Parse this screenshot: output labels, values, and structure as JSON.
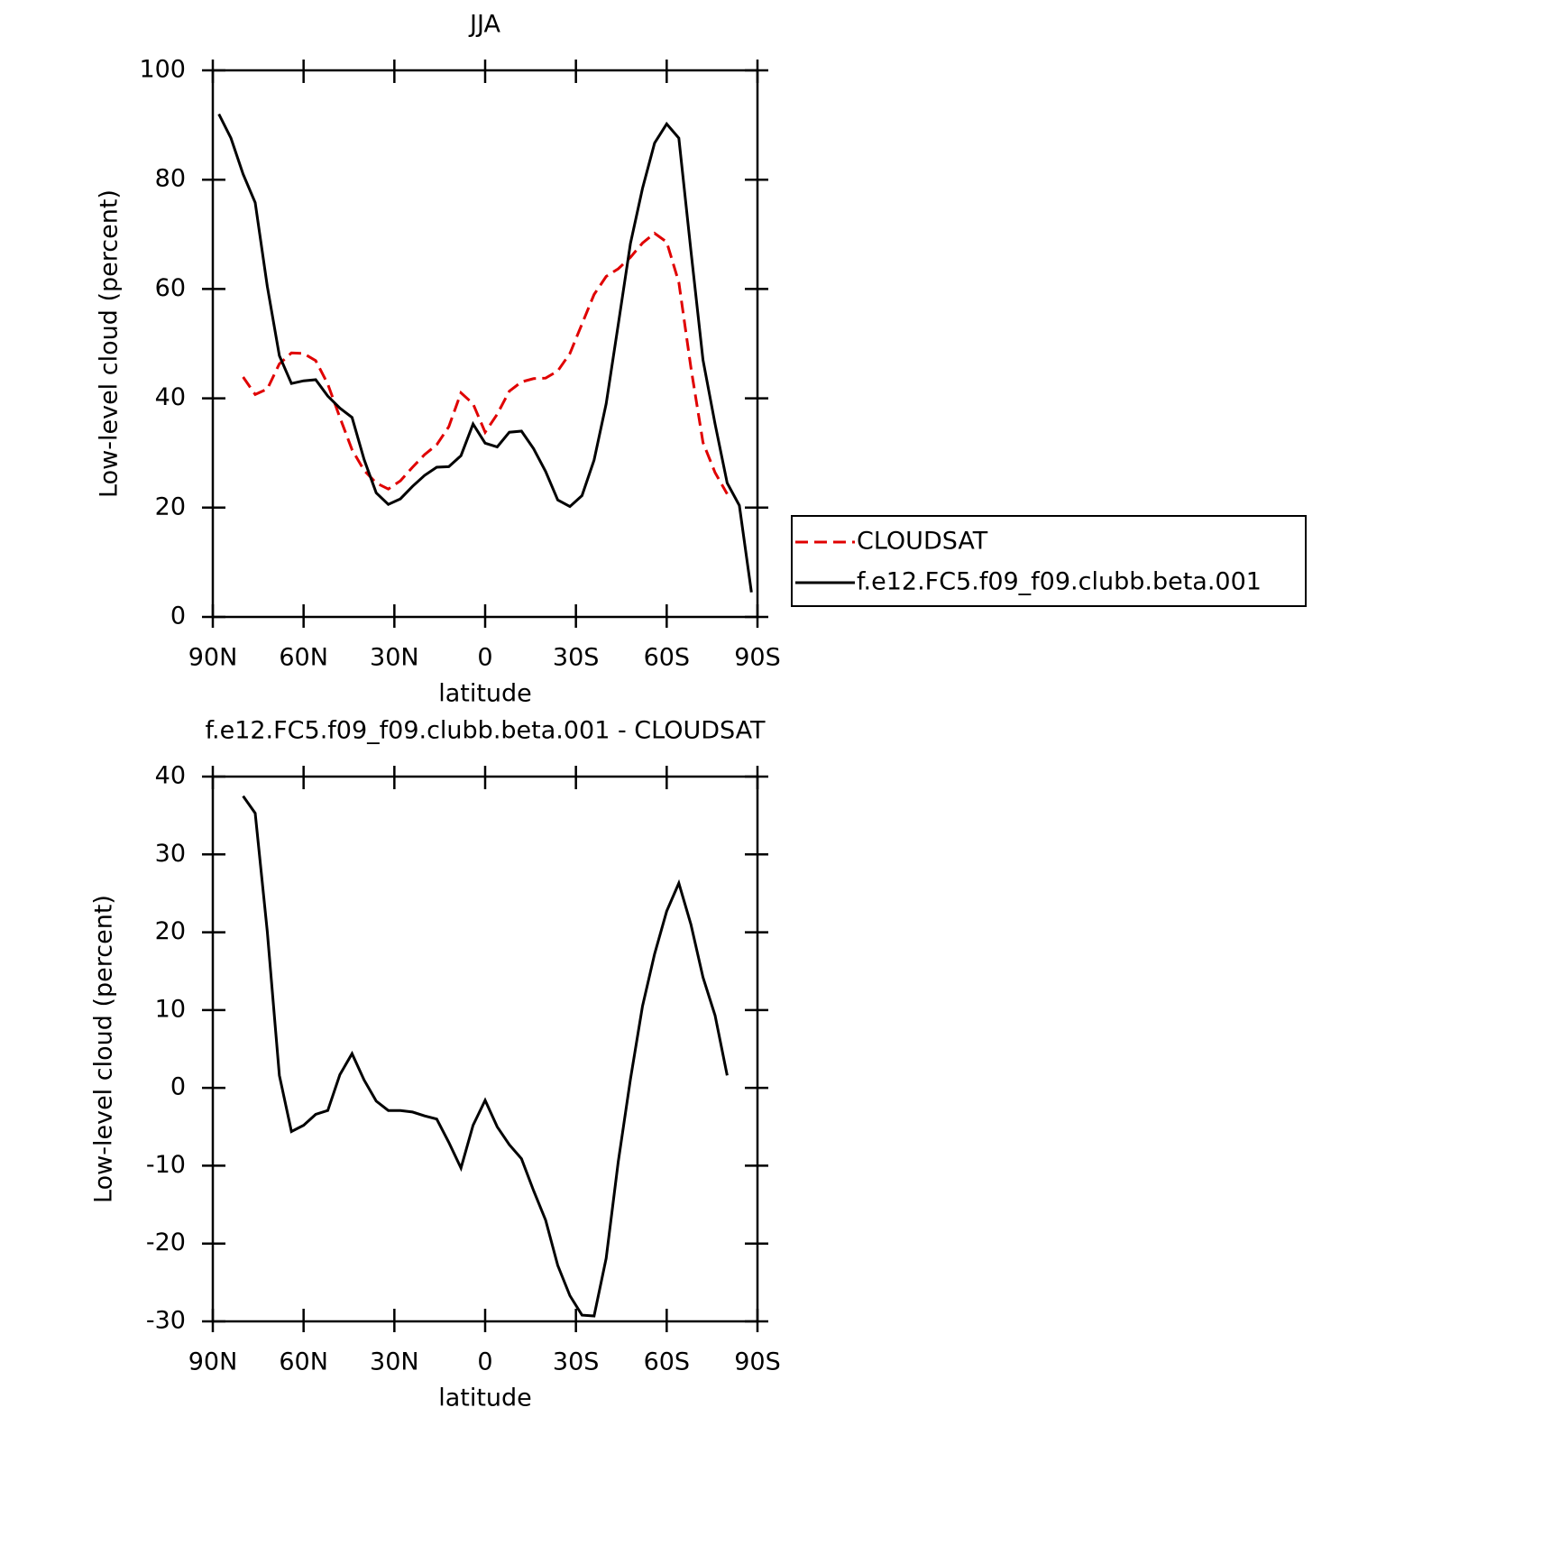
{
  "chart_data": [
    {
      "type": "line",
      "title": "JJA",
      "x_label": "latitude",
      "y_label": "Low-level cloud (percent)",
      "x": [
        88,
        84,
        80,
        76,
        72,
        68,
        64,
        60,
        56,
        52,
        48,
        44,
        40,
        36,
        32,
        28,
        24,
        20,
        16,
        12,
        8,
        4,
        0,
        -4,
        -8,
        -12,
        -16,
        -20,
        -24,
        -28,
        -32,
        -36,
        -40,
        -44,
        -48,
        -52,
        -56,
        -60,
        -64,
        -68,
        -72,
        -76,
        -80,
        -84,
        -88
      ],
      "series": [
        {
          "name": "CLOUDSAT",
          "color": "#e00000",
          "dashed": true,
          "values": [
            null,
            null,
            43.9,
            40.7,
            41.7,
            46.3,
            48.3,
            48.2,
            46.9,
            42.6,
            36.5,
            30.6,
            26.8,
            24.5,
            23.4,
            24.9,
            27.4,
            29.7,
            31.5,
            34.8,
            41.0,
            39.0,
            33.8,
            37.1,
            41.3,
            43.0,
            43.6,
            43.7,
            45.0,
            48.2,
            53.6,
            59.0,
            62.3,
            63.7,
            65.8,
            68.4,
            70.2,
            68.6,
            61.2,
            45.6,
            31.9,
            26.4,
            22.5,
            null,
            null
          ]
        },
        {
          "name": "f.e12.FC5.f09_f09.clubb.beta.001",
          "color": "#000000",
          "dashed": false,
          "values": [
            92.0,
            87.6,
            81.0,
            75.8,
            60.5,
            47.8,
            42.7,
            43.2,
            43.4,
            40.4,
            38.2,
            36.5,
            28.8,
            22.7,
            20.6,
            21.6,
            23.9,
            25.9,
            27.4,
            27.5,
            29.5,
            35.3,
            31.8,
            31.1,
            33.8,
            34.0,
            30.8,
            26.6,
            21.4,
            20.2,
            22.2,
            28.7,
            39.0,
            53.5,
            68.3,
            78.4,
            86.7,
            90.2,
            87.6,
            67.0,
            47.0,
            35.3,
            24.5,
            20.4,
            4.5
          ]
        }
      ],
      "xlim": [
        90,
        -90
      ],
      "xticks": [
        {
          "value": 90,
          "label": "90N"
        },
        {
          "value": 60,
          "label": "60N"
        },
        {
          "value": 30,
          "label": "30N"
        },
        0,
        {
          "value": -30,
          "label": "30S"
        },
        {
          "value": -60,
          "label": "60S"
        },
        {
          "value": -90,
          "label": "90S"
        }
      ],
      "ylim": [
        0,
        100
      ],
      "yticks": [
        0,
        20,
        40,
        60,
        80,
        100
      ],
      "legend": "right"
    },
    {
      "type": "line",
      "title": "f.e12.FC5.f09_f09.clubb.beta.001 - CLOUDSAT",
      "x_label": "latitude",
      "y_label": "Low-level cloud (percent)",
      "x": [
        88,
        84,
        80,
        76,
        72,
        68,
        64,
        60,
        56,
        52,
        48,
        44,
        40,
        36,
        32,
        28,
        24,
        20,
        16,
        12,
        8,
        4,
        0,
        -4,
        -8,
        -12,
        -16,
        -20,
        -24,
        -28,
        -32,
        -36,
        -40,
        -44,
        -48,
        -52,
        -56,
        -60,
        -64,
        -68,
        -72,
        -76,
        -80,
        -84,
        -88
      ],
      "values": [
        null,
        null,
        37.5,
        35.3,
        20.1,
        1.6,
        -5.6,
        -4.8,
        -3.4,
        -2.9,
        1.7,
        4.4,
        1.0,
        -1.7,
        -2.9,
        -2.9,
        -3.1,
        -3.6,
        -4.0,
        -7.0,
        -10.3,
        -4.8,
        -1.6,
        -5.0,
        -7.3,
        -9.1,
        -13.2,
        -17.0,
        -22.8,
        -26.7,
        -29.2,
        -29.3,
        -21.9,
        -9.5,
        1.1,
        10.5,
        17.2,
        22.7,
        26.3,
        21.0,
        14.2,
        9.3,
        1.6,
        null,
        null
      ],
      "color": "#000000",
      "xlim": [
        90,
        -90
      ],
      "xticks": [
        {
          "value": 90,
          "label": "90N"
        },
        {
          "value": 60,
          "label": "60N"
        },
        {
          "value": 30,
          "label": "30N"
        },
        0,
        {
          "value": -30,
          "label": "30S"
        },
        {
          "value": -60,
          "label": "60S"
        },
        {
          "value": -90,
          "label": "90S"
        }
      ],
      "ylim": [
        -30,
        40
      ],
      "yticks": [
        -30,
        -20,
        -10,
        0,
        10,
        20,
        30,
        40
      ]
    }
  ]
}
